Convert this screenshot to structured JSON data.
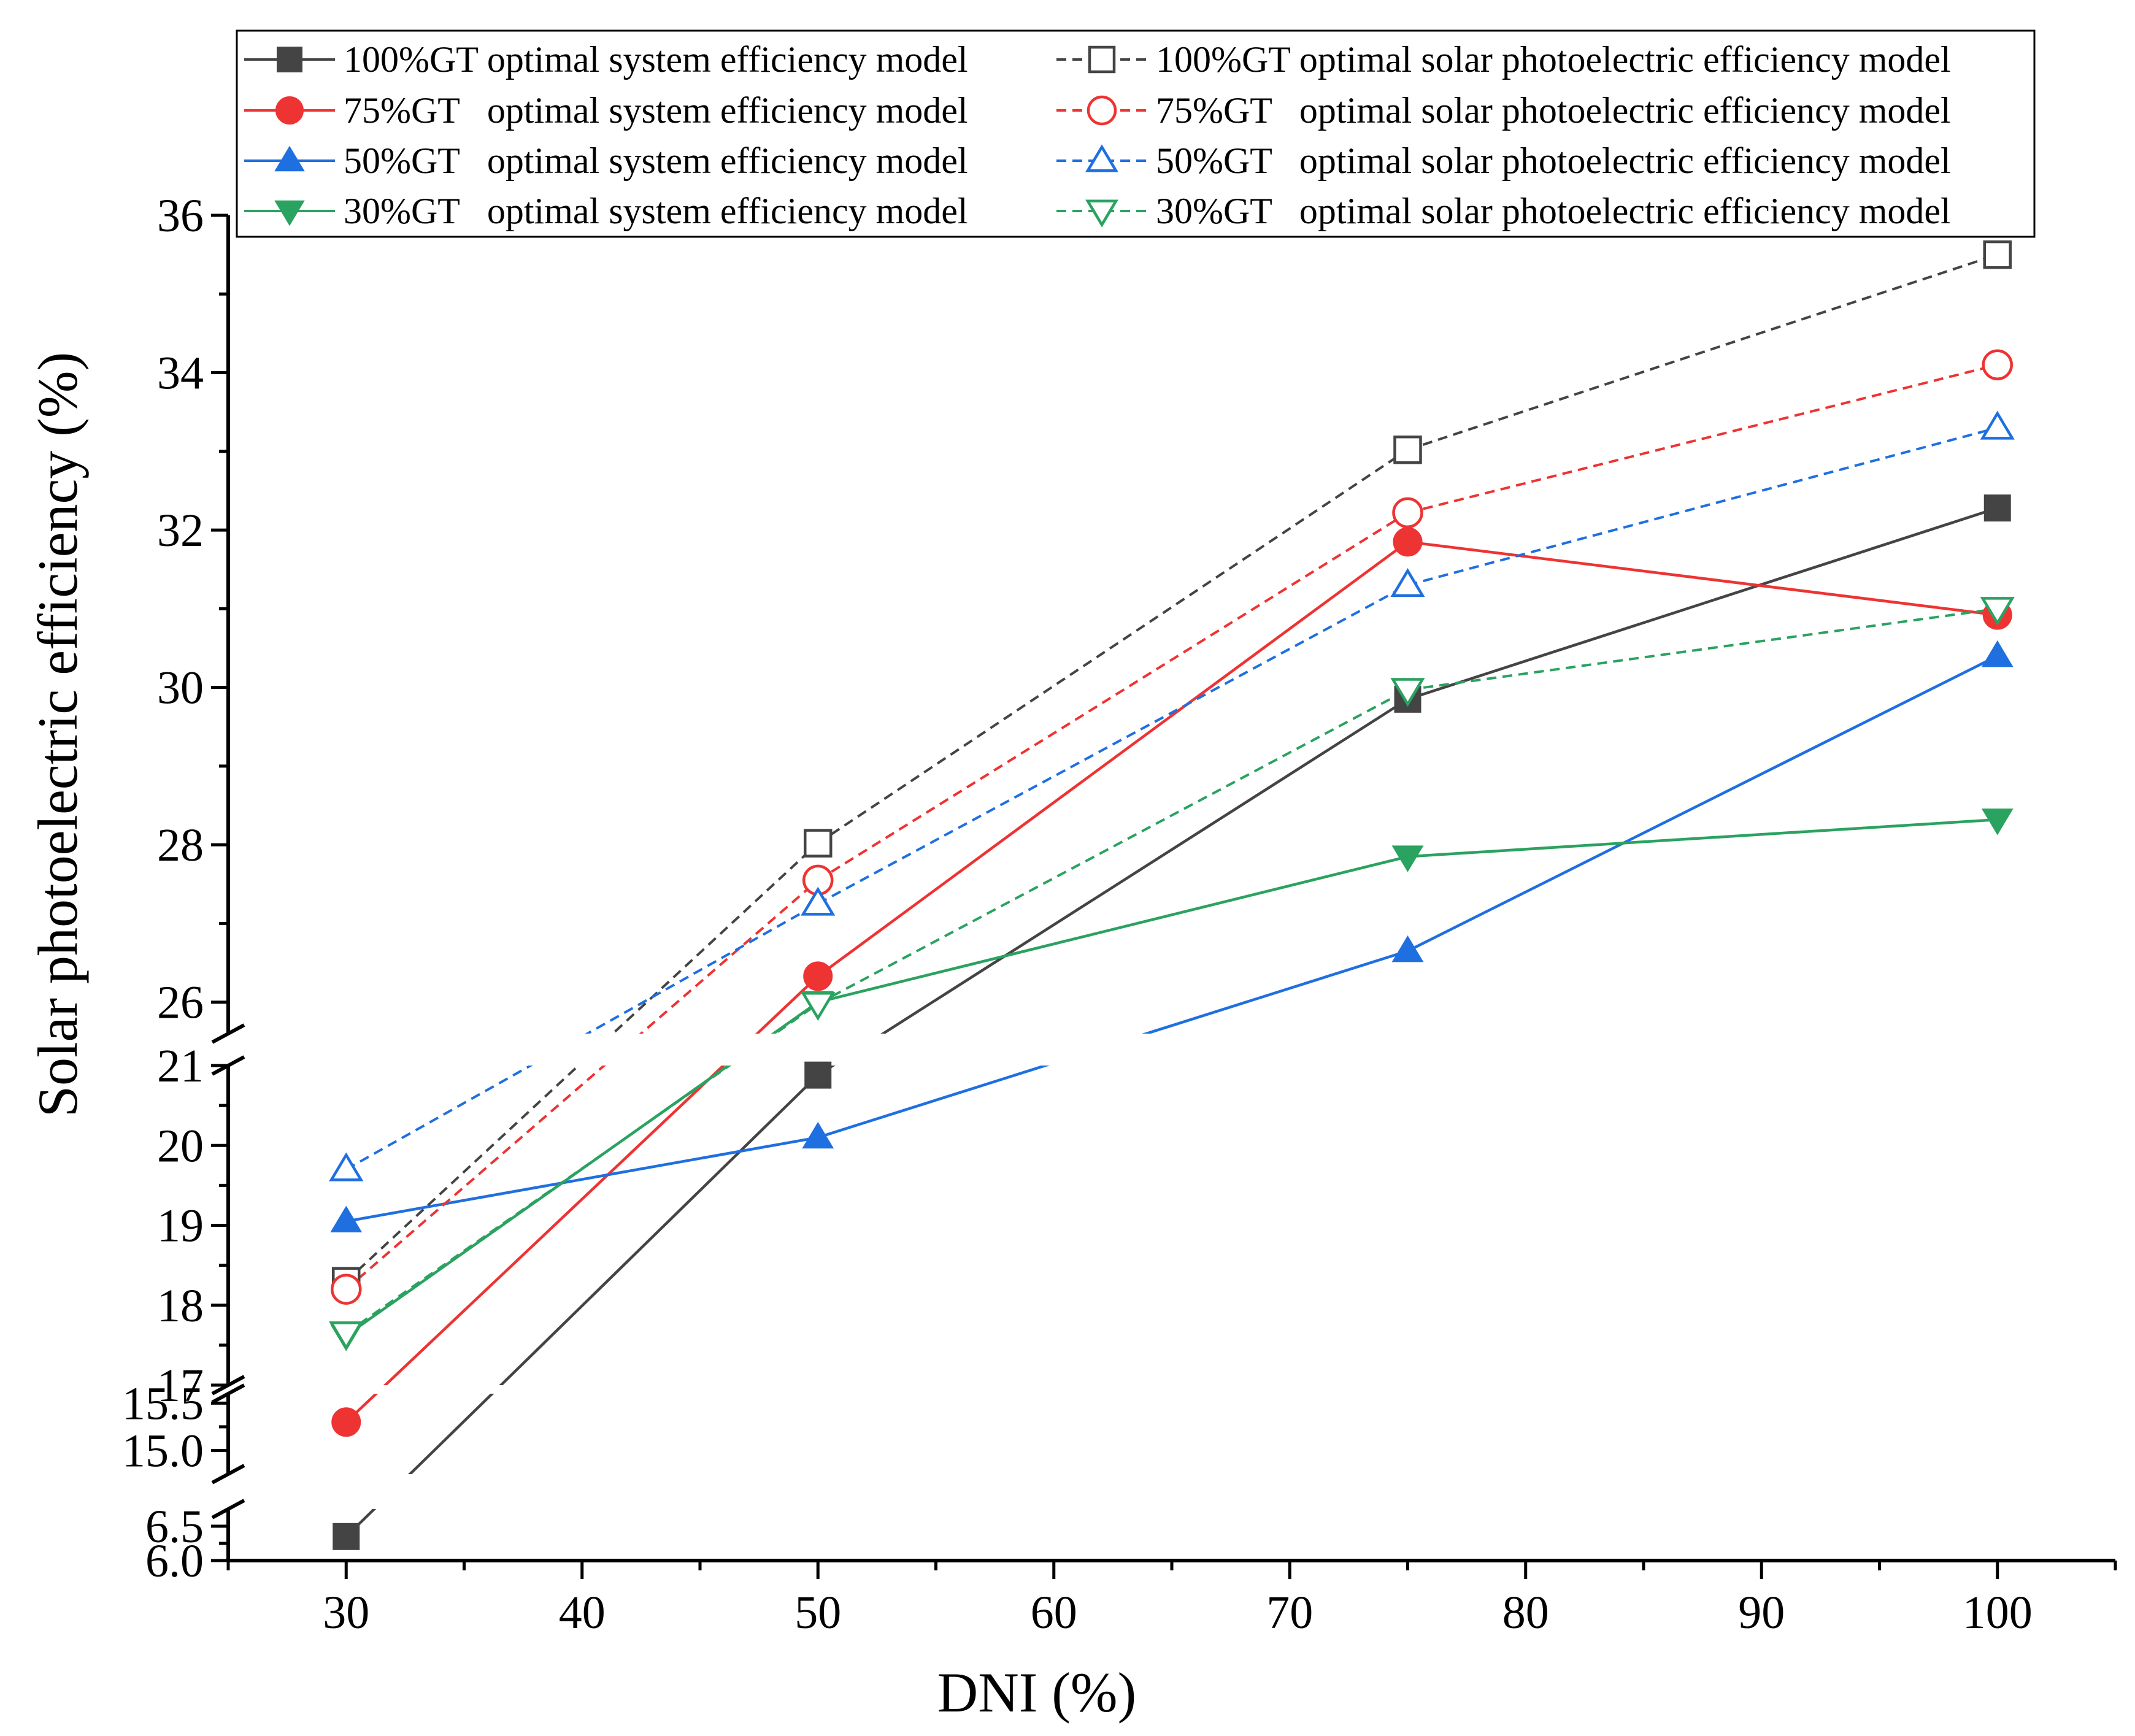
{
  "chart_data": {
    "type": "line",
    "xlabel": "DNI (%)",
    "ylabel": "Solar photoelectric efficiency (%)",
    "x": [
      30,
      50,
      75,
      100
    ],
    "xlim": [
      25,
      105
    ],
    "x_ticks": [
      30,
      40,
      50,
      60,
      70,
      80,
      90,
      100
    ],
    "y_break_segments": [
      {
        "range": [
          6.0,
          6.75
        ],
        "ticks": [
          6.0,
          6.5
        ],
        "tick_labels": [
          "6.0",
          "6.5"
        ]
      },
      {
        "range": [
          14.75,
          15.6
        ],
        "ticks": [
          15.0,
          15.5
        ],
        "tick_labels": [
          "15.0",
          "15.5"
        ]
      },
      {
        "range": [
          17,
          21
        ],
        "ticks": [
          17,
          18,
          19,
          20,
          21
        ],
        "tick_labels": [
          "17",
          "18",
          "19",
          "20",
          "21"
        ]
      },
      {
        "range": [
          25.6,
          36
        ],
        "ticks": [
          26,
          28,
          30,
          32,
          34,
          36
        ],
        "tick_labels": [
          "26",
          "28",
          "30",
          "32",
          "34",
          "36"
        ]
      }
    ],
    "series": [
      {
        "name": "100%GT optimal system efficiency model",
        "color": "#444444",
        "line": "solid",
        "marker": "square",
        "filled": true,
        "values": [
          6.35,
          20.88,
          29.85,
          32.28
        ]
      },
      {
        "name": "75%GT   optimal system efficiency model",
        "color": "#ee3333",
        "line": "solid",
        "marker": "circle",
        "filled": true,
        "values": [
          15.3,
          26.33,
          31.85,
          30.92
        ]
      },
      {
        "name": "50%GT   optimal system efficiency model",
        "color": "#1f6fe0",
        "line": "solid",
        "marker": "triangle-up",
        "filled": true,
        "values": [
          19.05,
          20.1,
          26.65,
          30.4
        ]
      },
      {
        "name": "30%GT   optimal system efficiency model",
        "color": "#2aa260",
        "line": "solid",
        "marker": "triangle-down",
        "filled": true,
        "values": [
          17.62,
          26.0,
          27.85,
          28.32
        ]
      },
      {
        "name": "100%GT optimal solar photoelectric efficiency model",
        "color": "#444444",
        "line": "dashed",
        "marker": "square",
        "filled": false,
        "values": [
          18.3,
          28.02,
          33.02,
          35.5
        ]
      },
      {
        "name": "75%GT   optimal solar photoelectric efficiency model",
        "color": "#ee3333",
        "line": "dashed",
        "marker": "circle",
        "filled": false,
        "values": [
          18.2,
          27.55,
          32.22,
          34.1
        ]
      },
      {
        "name": "50%GT   optimal solar photoelectric efficiency model",
        "color": "#1f6fe0",
        "line": "dashed",
        "marker": "triangle-up",
        "filled": false,
        "values": [
          19.7,
          27.25,
          31.3,
          33.3
        ]
      },
      {
        "name": "30%GT   optimal solar photoelectric efficiency model",
        "color": "#2aa260",
        "line": "dashed",
        "marker": "triangle-down",
        "filled": false,
        "values": [
          17.65,
          25.98,
          29.97,
          31.0
        ]
      }
    ],
    "legend_position": "top"
  }
}
